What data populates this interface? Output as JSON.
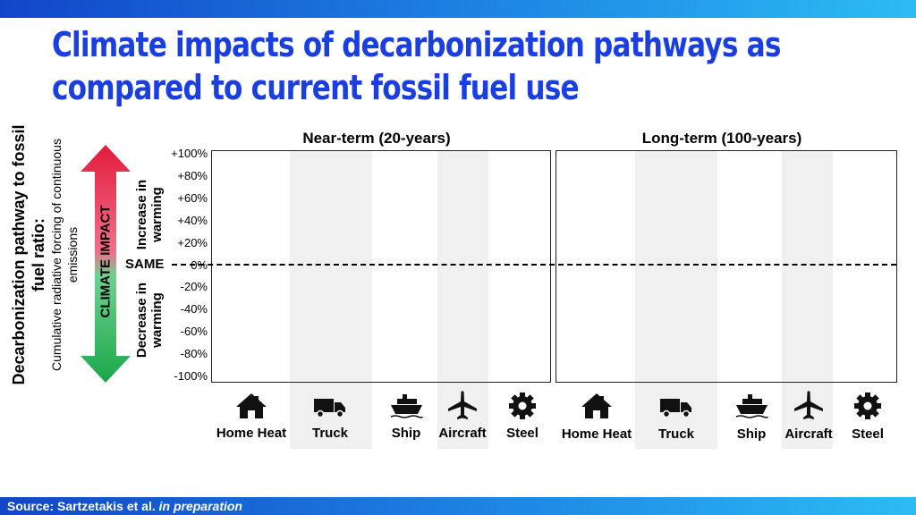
{
  "title": {
    "line1": "Climate impacts of decarbonization pathways as",
    "line2": "compared to current fossil fuel use"
  },
  "y_axis": {
    "main": "Decarbonization pathway to fossil fuel ratio:",
    "sub": "Cumulative radiative forcing of continuous emissions",
    "arrow_label": "CLIMATE IMPACT",
    "increase_label": "Increase in warming",
    "decrease_label": "Decrease in warming",
    "same_label": "SAME"
  },
  "source": {
    "prefix": "Source: Sartzetakis et al.",
    "italic": "in preparation"
  },
  "colors": {
    "title": "#1a3fe0",
    "arrow_up": "#e31b3c",
    "arrow_down": "#19a84a",
    "band": "#f0f0f0"
  },
  "chart_data": {
    "type": "bar",
    "panels": [
      {
        "title": "Near-term (20-years)",
        "categories": [
          "Home Heat",
          "Truck",
          "Ship",
          "Aircraft",
          "Steel"
        ],
        "values": []
      },
      {
        "title": "Long-term (100-years)",
        "categories": [
          "Home Heat",
          "Truck",
          "Ship",
          "Aircraft",
          "Steel"
        ],
        "values": []
      }
    ],
    "category_icons": [
      "house-icon",
      "truck-icon",
      "ship-icon",
      "airplane-icon",
      "gear-icon"
    ],
    "yticks": [
      "+100%",
      "+80%",
      "+60%",
      "+40%",
      "+20%",
      "0%",
      "-20%",
      "-40%",
      "-60%",
      "-80%",
      "-100%"
    ],
    "ylim": [
      -100,
      100
    ],
    "reference_line": 0
  }
}
